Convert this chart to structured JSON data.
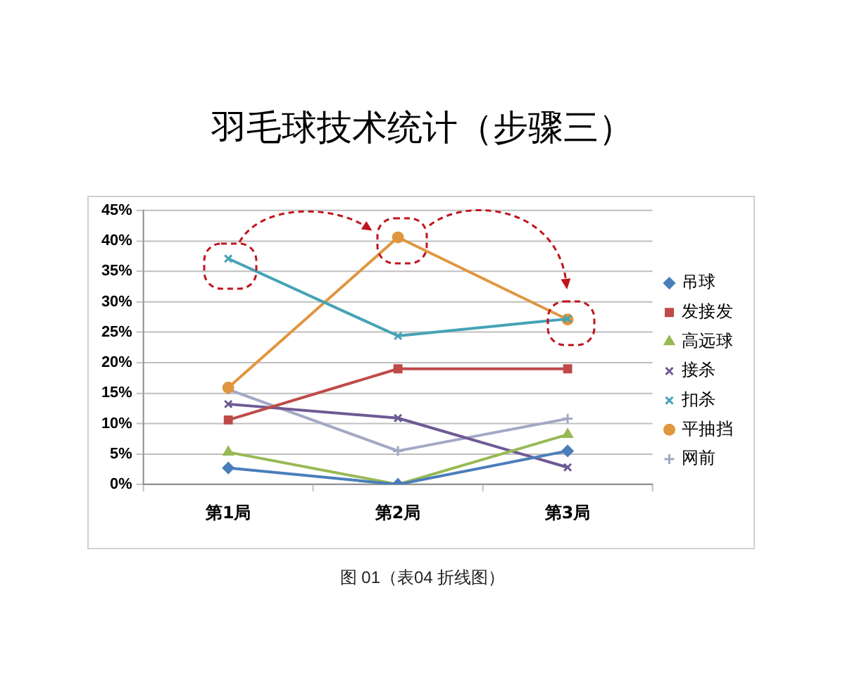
{
  "chart_data": {
    "type": "line",
    "title": "羽毛球技术统计（步骤三）",
    "annotations": [
      "图 01（表04 折线图）"
    ],
    "categories": [
      "第1局",
      "第2局",
      "第3局"
    ],
    "series": [
      {
        "name": "吊球",
        "color": "#4a7ebb",
        "marker": "diamond",
        "values": [
          2.7,
          0,
          5.5
        ]
      },
      {
        "name": "发接发",
        "color": "#be4b48",
        "marker": "square",
        "values": [
          10.6,
          19.0,
          19.0
        ]
      },
      {
        "name": "高远球",
        "color": "#98b954",
        "marker": "triangle",
        "values": [
          5.3,
          0,
          8.2
        ]
      },
      {
        "name": "接杀",
        "color": "#6e5a94",
        "marker": "cross",
        "values": [
          13.2,
          10.9,
          2.8
        ]
      },
      {
        "name": "扣杀",
        "color": "#46a3b6",
        "marker": "cross",
        "values": [
          37.1,
          24.4,
          27.2
        ]
      },
      {
        "name": "平抽挡",
        "color": "#e0963f",
        "marker": "circle",
        "values": [
          15.9,
          40.6,
          27.1
        ]
      },
      {
        "name": "网前",
        "color": "#a3a8c4",
        "marker": "plus",
        "values": [
          15.6,
          5.5,
          10.8
        ]
      }
    ],
    "ylim": [
      0,
      45
    ],
    "yticks": [
      {
        "value": 0,
        "label": "0%"
      },
      {
        "value": 5,
        "label": "5%"
      },
      {
        "value": 10,
        "label": "10%"
      },
      {
        "value": 15,
        "label": "15%"
      },
      {
        "value": 20,
        "label": "20%"
      },
      {
        "value": 25,
        "label": "25%"
      },
      {
        "value": 30,
        "label": "30%"
      },
      {
        "value": 35,
        "label": "35%"
      },
      {
        "value": 40,
        "label": "40%"
      },
      {
        "value": 45,
        "label": "45%"
      }
    ],
    "grid": "y",
    "legend": "right"
  }
}
